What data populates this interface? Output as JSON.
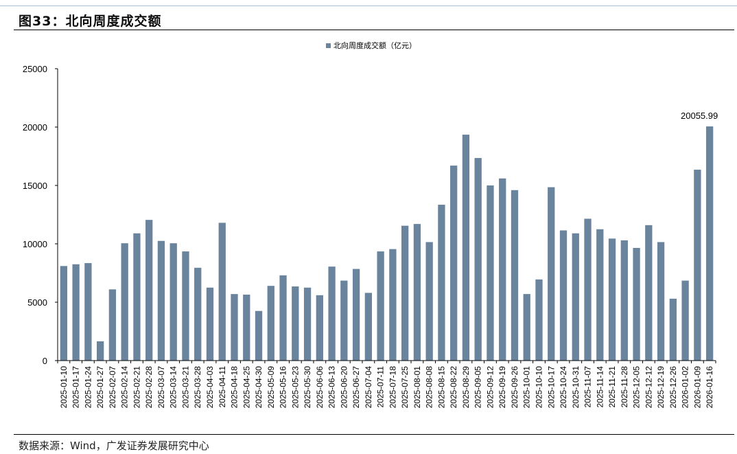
{
  "figure": {
    "title": "图33：北向周度成交额",
    "source": "数据来源：Wind，广发证券发展研究中心"
  },
  "colors": {
    "bar": "#6b849d",
    "axis": "#000000",
    "text": "#000000"
  },
  "chart_data": {
    "type": "bar",
    "legend": "北向周度成交额（亿元）",
    "legend_position": "top-center",
    "grid": false,
    "ylim": [
      0,
      25000
    ],
    "yticks": [
      0,
      5000,
      10000,
      15000,
      20000,
      25000
    ],
    "categories": [
      "2025-01-10",
      "2025-01-17",
      "2025-01-24",
      "2025-01-27",
      "2025-02-07",
      "2025-02-14",
      "2025-02-21",
      "2025-02-28",
      "2025-03-07",
      "2025-03-14",
      "2025-03-21",
      "2025-03-28",
      "2025-04-03",
      "2025-04-11",
      "2025-04-18",
      "2025-04-25",
      "2025-04-30",
      "2025-05-09",
      "2025-05-16",
      "2025-05-23",
      "2025-05-30",
      "2025-06-06",
      "2025-06-13",
      "2025-06-20",
      "2025-06-27",
      "2025-07-04",
      "2025-07-11",
      "2025-07-18",
      "2025-07-25",
      "2025-08-01",
      "2025-08-08",
      "2025-08-15",
      "2025-08-22",
      "2025-08-29",
      "2025-09-05",
      "2025-09-12",
      "2025-09-19",
      "2025-09-26",
      "2025-10-01",
      "2025-10-10",
      "2025-10-17",
      "2025-10-24",
      "2025-10-31",
      "2025-11-07",
      "2025-11-14",
      "2025-11-21",
      "2025-11-28",
      "2025-12-05",
      "2025-12-12",
      "2025-12-19",
      "2025-12-26",
      "2026-01-02",
      "2026-01-09",
      "2026-01-16"
    ],
    "series": [
      {
        "name": "北向周度成交额（亿元）",
        "values": [
          8100,
          8250,
          8350,
          1650,
          6100,
          10050,
          10900,
          12050,
          10250,
          10050,
          9350,
          7950,
          6250,
          11800,
          5700,
          5650,
          4250,
          6400,
          7300,
          6350,
          6250,
          5600,
          8050,
          6850,
          7850,
          5800,
          9350,
          9550,
          11550,
          11700,
          10150,
          13350,
          16700,
          19350,
          17350,
          15000,
          15600,
          14600,
          5700,
          6950,
          14850,
          11150,
          10900,
          12150,
          11250,
          10450,
          10300,
          9650,
          11600,
          10150,
          5300,
          6850,
          16350,
          20055.99
        ]
      }
    ],
    "annotations": [
      {
        "category": "2026-01-16",
        "text": "20055.99"
      }
    ]
  }
}
